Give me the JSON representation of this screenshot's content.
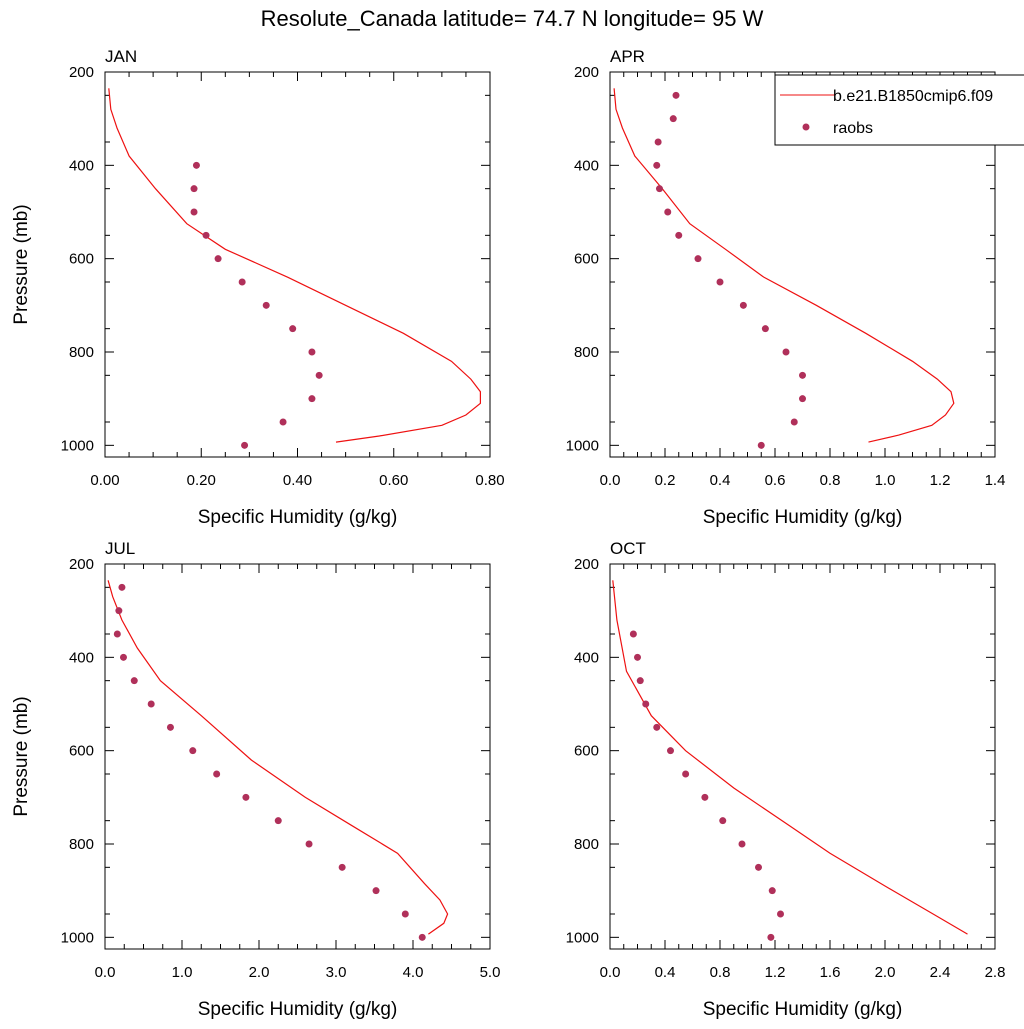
{
  "figure": {
    "title": "Resolute_Canada  latitude= 74.7 N longitude= 95 W"
  },
  "legend": {
    "model_label": "b.e21.B1850cmip6.f09",
    "obs_label": "raobs"
  },
  "colors": {
    "model": "#ee1111",
    "obs": "#b0305a"
  },
  "chart_data": [
    {
      "type": "scatter",
      "title": "JAN",
      "xlabel": "Specific Humidity (g/kg)",
      "ylabel": "Pressure (mb)",
      "xlim": [
        0,
        0.8
      ],
      "ylim": [
        1025,
        200
      ],
      "y_axis": "reversed",
      "xticks": [
        0,
        0.2,
        0.4,
        0.6,
        0.8
      ],
      "xtick_labels": [
        "0.00",
        "0.20",
        "0.40",
        "0.60",
        "0.80"
      ],
      "yticks": [
        200,
        400,
        600,
        800,
        1000
      ],
      "ytick_labels": [
        "200",
        "400",
        "600",
        "800",
        "1000"
      ],
      "series": [
        {
          "name": "b.e21.B1850cmip6.f09",
          "kind": "line",
          "x": [
            0.48,
            0.57,
            0.7,
            0.75,
            0.78,
            0.78,
            0.76,
            0.72,
            0.62,
            0.5,
            0.38,
            0.25,
            0.17,
            0.105,
            0.05,
            0.025,
            0.012,
            0.008
          ],
          "y": [
            993,
            980,
            957,
            935,
            910,
            885,
            858,
            820,
            760,
            700,
            640,
            580,
            525,
            450,
            380,
            320,
            280,
            235
          ]
        },
        {
          "name": "raobs",
          "kind": "points",
          "x": [
            0.29,
            0.37,
            0.43,
            0.445,
            0.43,
            0.39,
            0.335,
            0.285,
            0.235,
            0.21,
            0.185,
            0.185,
            0.19
          ],
          "y": [
            1000,
            950,
            900,
            850,
            800,
            750,
            700,
            650,
            600,
            550,
            500,
            450,
            400
          ]
        }
      ]
    },
    {
      "type": "scatter",
      "title": "APR",
      "xlabel": "Specific Humidity (g/kg)",
      "ylabel": "",
      "xlim": [
        0,
        1.4
      ],
      "ylim": [
        1025,
        200
      ],
      "y_axis": "reversed",
      "xticks": [
        0,
        0.2,
        0.4,
        0.6,
        0.8,
        1.0,
        1.2,
        1.4
      ],
      "xtick_labels": [
        "0.0",
        "0.2",
        "0.4",
        "0.6",
        "0.8",
        "1.0",
        "1.2",
        "1.4"
      ],
      "yticks": [
        200,
        400,
        600,
        800,
        1000
      ],
      "ytick_labels": [
        "200",
        "400",
        "600",
        "800",
        "1000"
      ],
      "series": [
        {
          "name": "b.e21.B1850cmip6.f09",
          "kind": "line",
          "x": [
            0.94,
            1.05,
            1.17,
            1.22,
            1.25,
            1.24,
            1.19,
            1.1,
            0.93,
            0.75,
            0.56,
            0.42,
            0.29,
            0.19,
            0.09,
            0.045,
            0.022,
            0.015
          ],
          "y": [
            993,
            978,
            957,
            935,
            910,
            885,
            858,
            820,
            760,
            700,
            640,
            580,
            525,
            450,
            380,
            320,
            280,
            235
          ]
        },
        {
          "name": "raobs",
          "kind": "points",
          "x": [
            0.55,
            0.67,
            0.7,
            0.7,
            0.64,
            0.565,
            0.485,
            0.4,
            0.32,
            0.25,
            0.21,
            0.18,
            0.17,
            0.175,
            0.23,
            0.24
          ],
          "y": [
            1000,
            950,
            900,
            850,
            800,
            750,
            700,
            650,
            600,
            550,
            500,
            450,
            400,
            350,
            300,
            250
          ]
        }
      ]
    },
    {
      "type": "scatter",
      "title": "JUL",
      "xlabel": "Specific Humidity (g/kg)",
      "ylabel": "Pressure (mb)",
      "xlim": [
        0,
        5
      ],
      "ylim": [
        1025,
        200
      ],
      "y_axis": "reversed",
      "xticks": [
        0,
        1,
        2,
        3,
        4,
        5
      ],
      "xtick_labels": [
        "0.0",
        "1.0",
        "2.0",
        "3.0",
        "4.0",
        "5.0"
      ],
      "yticks": [
        200,
        400,
        600,
        800,
        1000
      ],
      "ytick_labels": [
        "200",
        "400",
        "600",
        "800",
        "1000"
      ],
      "series": [
        {
          "name": "b.e21.B1850cmip6.f09",
          "kind": "line",
          "x": [
            4.2,
            4.4,
            4.45,
            4.35,
            4.15,
            3.8,
            3.2,
            2.6,
            1.9,
            1.25,
            0.72,
            0.42,
            0.22,
            0.1,
            0.04
          ],
          "y": [
            993,
            970,
            950,
            920,
            885,
            820,
            760,
            700,
            620,
            525,
            450,
            380,
            320,
            270,
            235
          ]
        },
        {
          "name": "raobs",
          "kind": "points",
          "x": [
            4.12,
            3.9,
            3.52,
            3.08,
            2.65,
            2.25,
            1.83,
            1.45,
            1.14,
            0.85,
            0.6,
            0.38,
            0.24,
            0.16,
            0.18,
            0.22
          ],
          "y": [
            1000,
            950,
            900,
            850,
            800,
            750,
            700,
            650,
            600,
            550,
            500,
            450,
            400,
            350,
            300,
            250
          ]
        }
      ]
    },
    {
      "type": "scatter",
      "title": "OCT",
      "xlabel": "Specific Humidity (g/kg)",
      "ylabel": "",
      "xlim": [
        0,
        2.8
      ],
      "ylim": [
        1025,
        200
      ],
      "y_axis": "reversed",
      "xticks": [
        0,
        0.4,
        0.8,
        1.2,
        1.6,
        2.0,
        2.4,
        2.8
      ],
      "xtick_labels": [
        "0.0",
        "0.4",
        "0.8",
        "1.2",
        "1.6",
        "2.0",
        "2.4",
        "2.8"
      ],
      "yticks": [
        200,
        400,
        600,
        800,
        1000
      ],
      "ytick_labels": [
        "200",
        "400",
        "600",
        "800",
        "1000"
      ],
      "series": [
        {
          "name": "b.e21.B1850cmip6.f09",
          "kind": "line",
          "x": [
            2.6,
            2.35,
            2.0,
            1.6,
            1.3,
            0.9,
            0.55,
            0.3,
            0.12,
            0.05,
            0.02
          ],
          "y": [
            993,
            950,
            890,
            820,
            760,
            680,
            600,
            525,
            430,
            320,
            235
          ]
        },
        {
          "name": "raobs",
          "kind": "points",
          "x": [
            1.17,
            1.24,
            1.18,
            1.08,
            0.96,
            0.82,
            0.69,
            0.55,
            0.44,
            0.34,
            0.26,
            0.22,
            0.2,
            0.17
          ],
          "y": [
            1000,
            950,
            900,
            850,
            800,
            750,
            700,
            650,
            600,
            550,
            500,
            450,
            400,
            350
          ]
        }
      ]
    }
  ]
}
